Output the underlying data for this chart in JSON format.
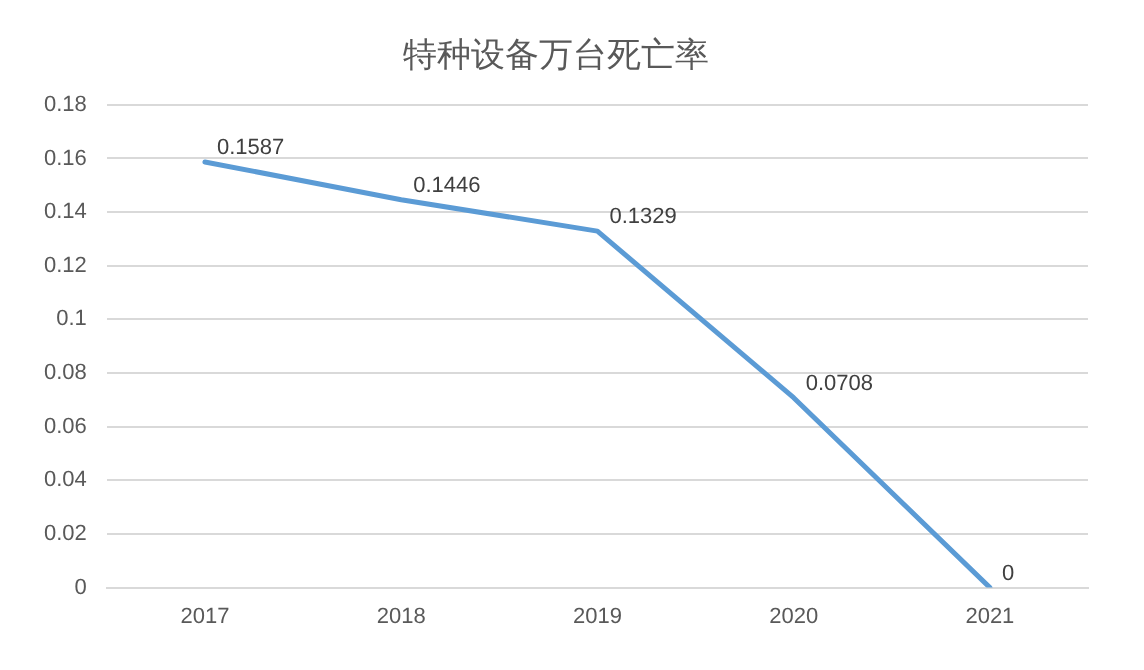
{
  "chart_data": {
    "type": "line",
    "title": "特种设备万台死亡率",
    "categories": [
      "2017",
      "2018",
      "2019",
      "2020",
      "2021"
    ],
    "series": [
      {
        "color": "#5b9bd5",
        "values": [
          0.1587,
          0.1446,
          0.1329,
          0.0708,
          0
        ]
      }
    ],
    "ylim": [
      0,
      0.18
    ],
    "yticks": [
      0,
      0.02,
      0.04,
      0.06,
      0.08,
      0.1,
      0.12,
      0.14,
      0.16,
      0.18
    ],
    "grid": "y",
    "legend": false,
    "marker": "none",
    "line_style": "solid",
    "data_labels": true
  }
}
